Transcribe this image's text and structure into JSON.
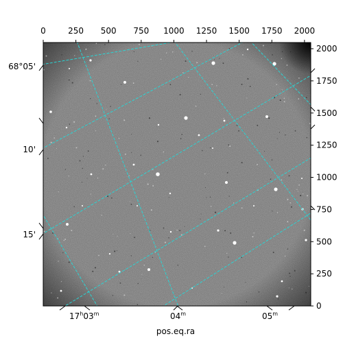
{
  "image": {
    "subject": "astronomical-sky-field",
    "style": "grayscale",
    "grid_color": "#2ad4d4",
    "frame_color": "#000000"
  },
  "axes": {
    "bottom_label": "pos.eq.ra",
    "top_ticks": [
      "0",
      "250",
      "500",
      "750",
      "1000",
      "1250",
      "1500",
      "1750",
      "2000"
    ],
    "top_tick_values": [
      0,
      250,
      500,
      750,
      1000,
      1250,
      1500,
      1750,
      2000
    ],
    "right_ticks": [
      "0",
      "250",
      "500",
      "750",
      "1000",
      "1250",
      "1500",
      "1750",
      "2000"
    ],
    "right_tick_values": [
      0,
      250,
      500,
      750,
      1000,
      1250,
      1500,
      1750,
      2000
    ],
    "pixel_range": [
      0,
      2048
    ],
    "ra_ticks": [
      {
        "label": "17h03m",
        "hour": "17",
        "h": "h",
        "min": "03",
        "m": "m"
      },
      {
        "label": "04m",
        "min": "04",
        "m": "m"
      },
      {
        "label": "05m",
        "min": "05",
        "m": "m"
      }
    ],
    "dec_ticks": [
      "68°05'",
      "10'",
      "15'"
    ]
  }
}
